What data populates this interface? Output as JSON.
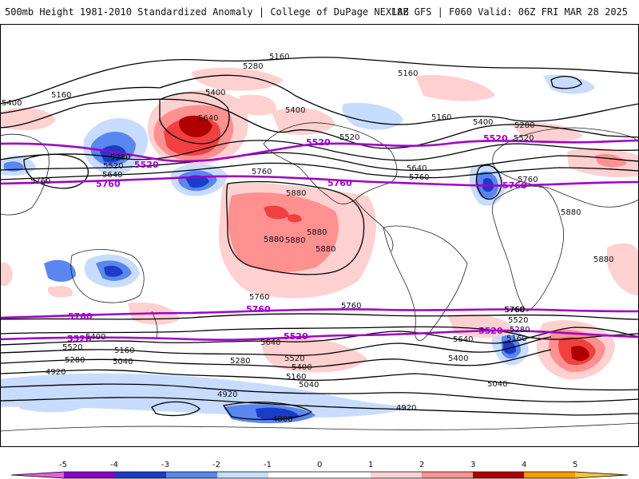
{
  "header": {
    "title": "500mb Height 1981-2010 Standardized Anomaly | College of DuPage NEXLAB",
    "run": "18Z GFS | F060 Valid: 06Z FRI MAR 28 2025"
  },
  "colors": {
    "neg5": "#e060e0",
    "neg4": "#8a00c8",
    "neg3": "#1a3cc8",
    "neg2": "#5a86f0",
    "neg1": "#c8dcff",
    "zero": "#ffffff",
    "pos1": "#ffd0d0",
    "pos2": "#ff9090",
    "pos3": "#f04040",
    "pos4": "#b00000",
    "pos5": "#ff9a00",
    "reference": "#a000c8",
    "contour": "#000000",
    "coast": "#222222"
  },
  "contour_labels": [
    {
      "text": "5160"
    },
    {
      "text": "5280"
    },
    {
      "text": "5400"
    },
    {
      "text": "5160"
    },
    {
      "text": "5160"
    },
    {
      "text": "5400"
    },
    {
      "text": "5640"
    },
    {
      "text": "5400"
    },
    {
      "text": "5520"
    },
    {
      "text": "5400"
    },
    {
      "text": "5160"
    },
    {
      "text": "5280"
    },
    {
      "text": "5520"
    },
    {
      "text": "5280"
    },
    {
      "text": "5520"
    },
    {
      "text": "5640"
    },
    {
      "text": "5760"
    },
    {
      "text": "5640"
    },
    {
      "text": "5760"
    },
    {
      "text": "5760"
    },
    {
      "text": "5760"
    },
    {
      "text": "5880"
    },
    {
      "text": "5880"
    },
    {
      "text": "5880"
    },
    {
      "text": "5880"
    },
    {
      "text": "5880"
    },
    {
      "text": "5880"
    },
    {
      "text": "5880"
    },
    {
      "text": "5760"
    },
    {
      "text": "5760"
    },
    {
      "text": "5760"
    },
    {
      "text": "5400"
    },
    {
      "text": "5520"
    },
    {
      "text": "5160"
    },
    {
      "text": "5040"
    },
    {
      "text": "5280"
    },
    {
      "text": "5640"
    },
    {
      "text": "5520"
    },
    {
      "text": "5400"
    },
    {
      "text": "5160"
    },
    {
      "text": "5040"
    },
    {
      "text": "4920"
    },
    {
      "text": "4920"
    },
    {
      "text": "4800"
    },
    {
      "text": "4920"
    },
    {
      "text": "5040"
    },
    {
      "text": "5400"
    },
    {
      "text": "5640"
    },
    {
      "text": "5760"
    },
    {
      "text": "5520"
    },
    {
      "text": "5280"
    },
    {
      "text": "5160"
    },
    {
      "text": "5280"
    }
  ],
  "reference_labels": [
    {
      "text": "5520"
    },
    {
      "text": "5520"
    },
    {
      "text": "5520"
    },
    {
      "text": "5760"
    },
    {
      "text": "5760"
    },
    {
      "text": "5760"
    },
    {
      "text": "5760"
    },
    {
      "text": "5760"
    },
    {
      "text": "5520"
    },
    {
      "text": "5520"
    },
    {
      "text": "5520"
    }
  ],
  "legend": {
    "ticks": [
      "-5",
      "-4",
      "-3",
      "-2",
      "-1",
      "0",
      "1",
      "2",
      "3",
      "4",
      "5"
    ]
  }
}
